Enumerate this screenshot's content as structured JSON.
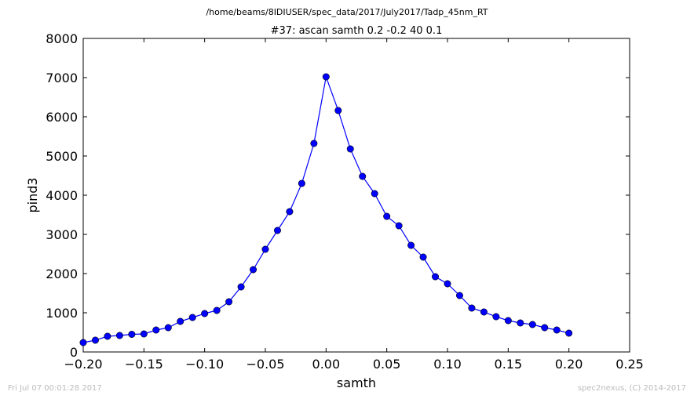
{
  "chart_data": {
    "type": "line",
    "supertitle": "/home/beams/8IDIUSER/spec_data/2017/July2017/Tadp_45nm_RT",
    "title": "#37: ascan  samth 0.2 -0.2  40 0.1",
    "xlabel": "samth",
    "ylabel": "pind3",
    "xlim": [
      -0.2,
      0.25
    ],
    "ylim": [
      0,
      8000
    ],
    "xticks": [
      -0.2,
      -0.15,
      -0.1,
      -0.05,
      0.0,
      0.05,
      0.1,
      0.15,
      0.2,
      0.25
    ],
    "xtick_labels": [
      "−0.20",
      "−0.15",
      "−0.10",
      "−0.05",
      "0.00",
      "0.05",
      "0.10",
      "0.15",
      "0.20",
      "0.25"
    ],
    "yticks": [
      0,
      1000,
      2000,
      3000,
      4000,
      5000,
      6000,
      7000,
      8000
    ],
    "ytick_labels": [
      "0",
      "1000",
      "2000",
      "3000",
      "4000",
      "5000",
      "6000",
      "7000",
      "8000"
    ],
    "grid": false,
    "legend": "none",
    "series": [
      {
        "color": "#0000ff",
        "marker": "circle",
        "x": [
          -0.2,
          -0.19,
          -0.18,
          -0.17,
          -0.16,
          -0.15,
          -0.14,
          -0.13,
          -0.12,
          -0.11,
          -0.1,
          -0.09,
          -0.08,
          -0.07,
          -0.06,
          -0.05,
          -0.04,
          -0.03,
          -0.02,
          -0.01,
          0.0,
          0.01,
          0.02,
          0.03,
          0.04,
          0.05,
          0.06,
          0.07,
          0.08,
          0.09,
          0.1,
          0.11,
          0.12,
          0.13,
          0.14,
          0.15,
          0.16,
          0.17,
          0.18,
          0.19,
          0.2
        ],
        "y": [
          240,
          300,
          400,
          420,
          450,
          460,
          560,
          620,
          780,
          880,
          980,
          1060,
          1280,
          1660,
          2100,
          2620,
          3100,
          3580,
          4300,
          5320,
          7020,
          6160,
          5180,
          4480,
          4040,
          3460,
          3220,
          2720,
          2420,
          1920,
          1740,
          1440,
          1120,
          1020,
          900,
          800,
          740,
          700,
          620,
          560,
          480
        ]
      }
    ]
  },
  "footer": {
    "timestamp": "Fri Jul 07 00:01:28 2017",
    "credit": "spec2nexus, (C) 2014-2017"
  }
}
